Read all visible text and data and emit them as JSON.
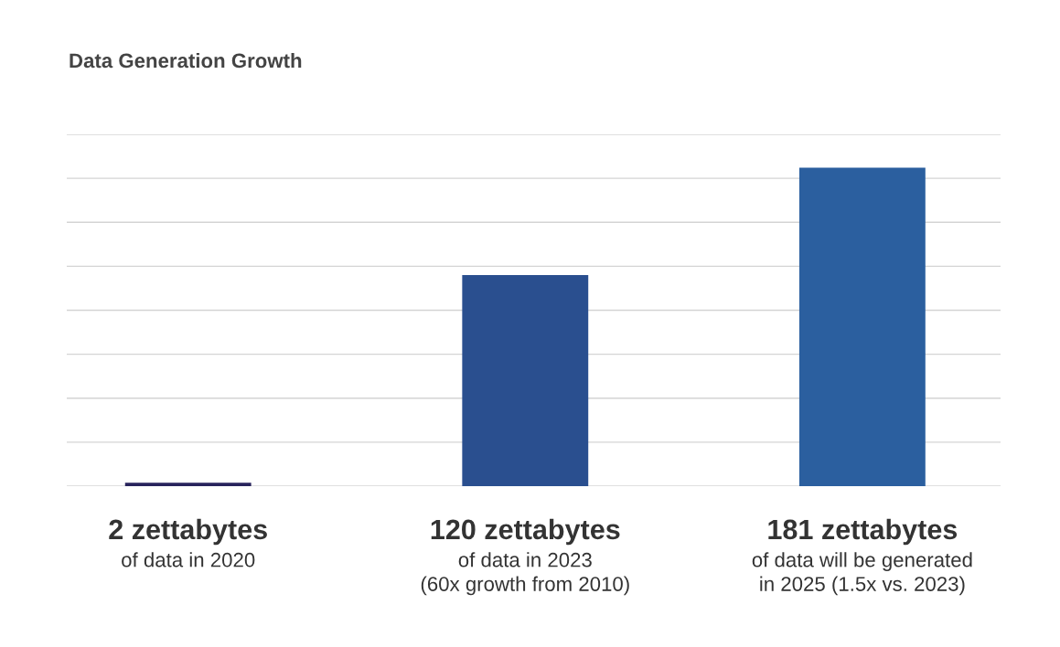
{
  "chart_data": {
    "type": "bar",
    "title": "Data Generation Growth",
    "categories": [
      "of data in 2020",
      "of data in 2023\n(60x growth from 2010)",
      "of data will be generated\nin 2025 (1.5x vs. 2023)"
    ],
    "values": [
      2,
      120,
      181
    ],
    "value_labels": [
      "2 zettabytes",
      "120 zettabytes",
      "181 zettabytes"
    ],
    "colors": [
      "#28235c",
      "#2a4f8f",
      "#2b5f9f"
    ],
    "ylim": [
      0,
      200
    ],
    "yticks": [
      0,
      25,
      50,
      75,
      100,
      125,
      150,
      175,
      200
    ],
    "grid": "y",
    "tick_labels": false
  }
}
